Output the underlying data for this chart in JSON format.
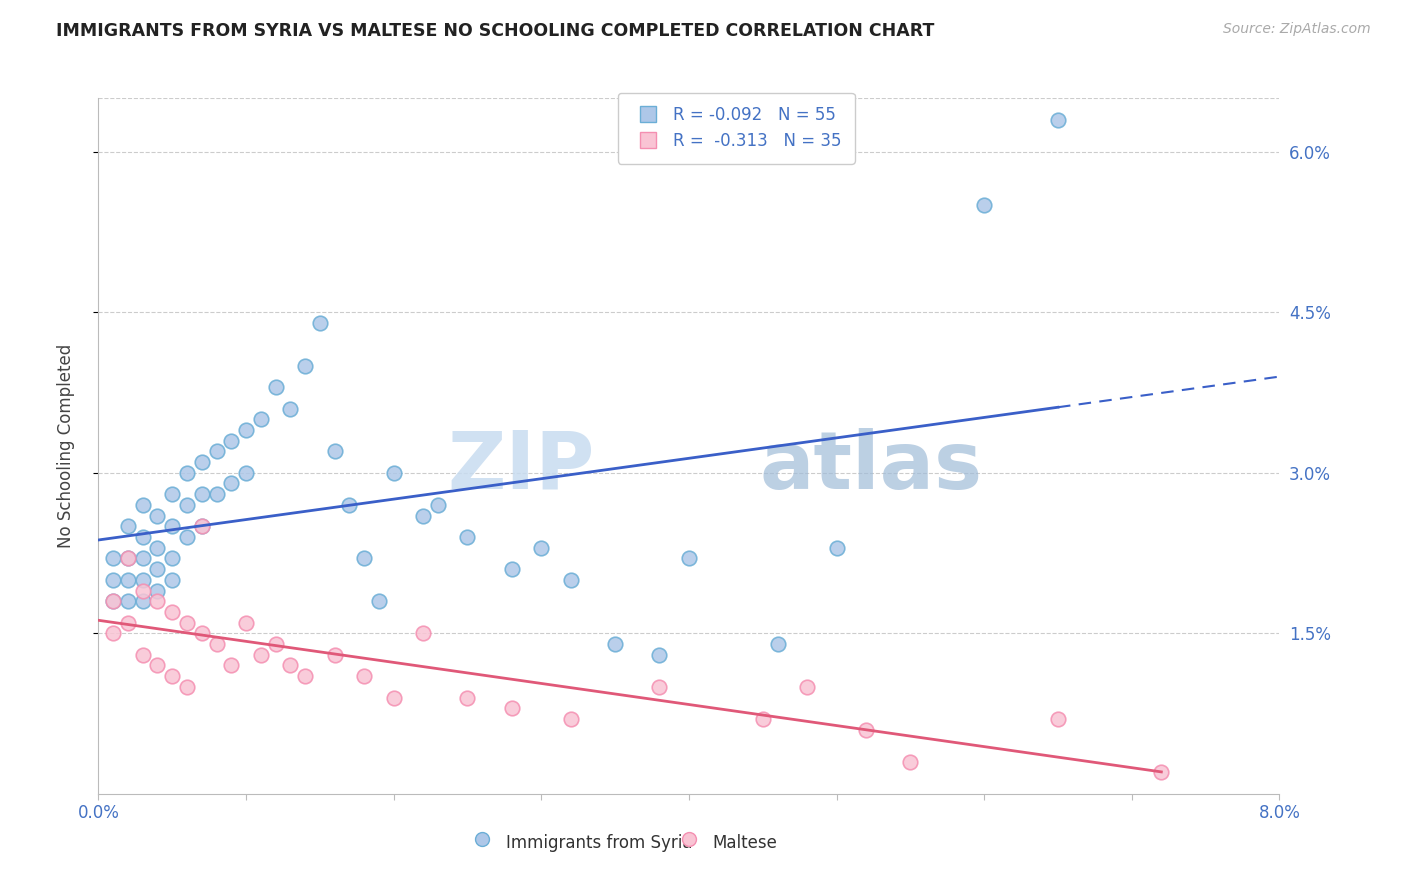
{
  "title": "IMMIGRANTS FROM SYRIA VS MALTESE NO SCHOOLING COMPLETED CORRELATION CHART",
  "source": "Source: ZipAtlas.com",
  "ylabel": "No Schooling Completed",
  "xlim": [
    0.0,
    0.08
  ],
  "ylim": [
    0.0,
    0.065
  ],
  "right_yticks": [
    0.015,
    0.03,
    0.045,
    0.06
  ],
  "right_yticklabels": [
    "1.5%",
    "3.0%",
    "4.5%",
    "6.0%"
  ],
  "bottom_xticks": [
    0.0,
    0.01,
    0.02,
    0.03,
    0.04,
    0.05,
    0.06,
    0.07,
    0.08
  ],
  "bottom_xticklabels": [
    "0.0%",
    "",
    "",
    "",
    "",
    "",
    "",
    "",
    "8.0%"
  ],
  "syria_color_fill": "#aec7e8",
  "syria_color_edge": "#6baed6",
  "malta_color_fill": "#f9c4d4",
  "malta_color_edge": "#f48fb1",
  "trend_syria_color": "#3a5fc8",
  "trend_malta_color": "#e05878",
  "watermark_zip": "ZIP",
  "watermark_atlas": "atlas",
  "syria_x": [
    0.001,
    0.001,
    0.001,
    0.002,
    0.002,
    0.002,
    0.002,
    0.003,
    0.003,
    0.003,
    0.003,
    0.003,
    0.004,
    0.004,
    0.004,
    0.004,
    0.005,
    0.005,
    0.005,
    0.005,
    0.006,
    0.006,
    0.006,
    0.007,
    0.007,
    0.007,
    0.008,
    0.008,
    0.009,
    0.009,
    0.01,
    0.01,
    0.011,
    0.012,
    0.013,
    0.014,
    0.015,
    0.016,
    0.017,
    0.018,
    0.019,
    0.02,
    0.022,
    0.023,
    0.025,
    0.028,
    0.03,
    0.032,
    0.035,
    0.038,
    0.04,
    0.046,
    0.05,
    0.06,
    0.065
  ],
  "syria_y": [
    0.022,
    0.02,
    0.018,
    0.025,
    0.022,
    0.02,
    0.018,
    0.027,
    0.024,
    0.022,
    0.02,
    0.018,
    0.026,
    0.023,
    0.021,
    0.019,
    0.028,
    0.025,
    0.022,
    0.02,
    0.03,
    0.027,
    0.024,
    0.031,
    0.028,
    0.025,
    0.032,
    0.028,
    0.033,
    0.029,
    0.034,
    0.03,
    0.035,
    0.038,
    0.036,
    0.04,
    0.044,
    0.032,
    0.027,
    0.022,
    0.018,
    0.03,
    0.026,
    0.027,
    0.024,
    0.021,
    0.023,
    0.02,
    0.014,
    0.013,
    0.022,
    0.014,
    0.023,
    0.055,
    0.063
  ],
  "malta_x": [
    0.001,
    0.001,
    0.002,
    0.002,
    0.003,
    0.003,
    0.004,
    0.004,
    0.005,
    0.005,
    0.006,
    0.006,
    0.007,
    0.007,
    0.008,
    0.009,
    0.01,
    0.011,
    0.012,
    0.013,
    0.014,
    0.016,
    0.018,
    0.02,
    0.022,
    0.025,
    0.028,
    0.032,
    0.038,
    0.045,
    0.048,
    0.052,
    0.055,
    0.065,
    0.072
  ],
  "malta_y": [
    0.018,
    0.015,
    0.022,
    0.016,
    0.019,
    0.013,
    0.018,
    0.012,
    0.017,
    0.011,
    0.016,
    0.01,
    0.015,
    0.025,
    0.014,
    0.012,
    0.016,
    0.013,
    0.014,
    0.012,
    0.011,
    0.013,
    0.011,
    0.009,
    0.015,
    0.009,
    0.008,
    0.007,
    0.01,
    0.007,
    0.01,
    0.006,
    0.003,
    0.007,
    0.002
  ]
}
